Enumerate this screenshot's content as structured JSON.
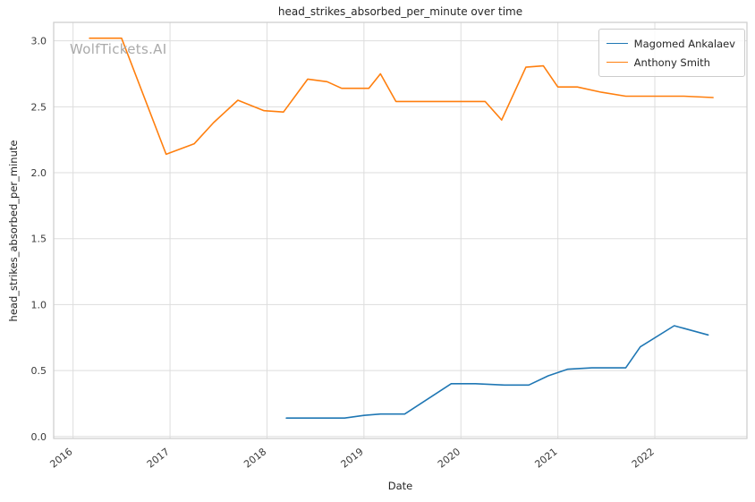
{
  "watermark": "WolfTickets.AI",
  "chart_data": {
    "type": "line",
    "title": "head_strikes_absorbed_per_minute over time",
    "xlabel": "Date",
    "ylabel": "head_strikes_absorbed_per_minute",
    "xlim": [
      2015.8,
      2022.95
    ],
    "ylim": [
      -0.015,
      3.14
    ],
    "x_ticks": [
      2016,
      2017,
      2018,
      2019,
      2020,
      2021,
      2022
    ],
    "y_ticks": [
      0.0,
      0.5,
      1.0,
      1.5,
      2.0,
      2.5,
      3.0
    ],
    "grid": true,
    "grid_color": "#dddddd",
    "border_color": "#cccccc",
    "legend_position": "upper right",
    "series": [
      {
        "name": "Magomed Ankalaev",
        "color": "#1f77b4",
        "points": [
          [
            2018.2,
            0.14
          ],
          [
            2018.55,
            0.14
          ],
          [
            2018.8,
            0.14
          ],
          [
            2019.0,
            0.16
          ],
          [
            2019.17,
            0.17
          ],
          [
            2019.42,
            0.17
          ],
          [
            2019.9,
            0.4
          ],
          [
            2020.15,
            0.4
          ],
          [
            2020.45,
            0.39
          ],
          [
            2020.7,
            0.39
          ],
          [
            2020.9,
            0.46
          ],
          [
            2021.1,
            0.51
          ],
          [
            2021.35,
            0.52
          ],
          [
            2021.7,
            0.52
          ],
          [
            2021.85,
            0.68
          ],
          [
            2022.2,
            0.84
          ],
          [
            2022.55,
            0.77
          ]
        ]
      },
      {
        "name": "Anthony Smith",
        "color": "#ff7f0e",
        "points": [
          [
            2016.17,
            3.02
          ],
          [
            2016.3,
            3.02
          ],
          [
            2016.5,
            3.02
          ],
          [
            2016.96,
            2.14
          ],
          [
            2017.25,
            2.22
          ],
          [
            2017.45,
            2.38
          ],
          [
            2017.7,
            2.55
          ],
          [
            2017.97,
            2.47
          ],
          [
            2018.17,
            2.46
          ],
          [
            2018.42,
            2.71
          ],
          [
            2018.62,
            2.69
          ],
          [
            2018.77,
            2.64
          ],
          [
            2019.05,
            2.64
          ],
          [
            2019.17,
            2.75
          ],
          [
            2019.33,
            2.54
          ],
          [
            2019.55,
            2.54
          ],
          [
            2019.95,
            2.54
          ],
          [
            2020.25,
            2.54
          ],
          [
            2020.42,
            2.4
          ],
          [
            2020.67,
            2.8
          ],
          [
            2020.85,
            2.81
          ],
          [
            2021.0,
            2.65
          ],
          [
            2021.2,
            2.65
          ],
          [
            2021.45,
            2.61
          ],
          [
            2021.7,
            2.58
          ],
          [
            2022.0,
            2.58
          ],
          [
            2022.3,
            2.58
          ],
          [
            2022.6,
            2.57
          ]
        ]
      }
    ]
  }
}
